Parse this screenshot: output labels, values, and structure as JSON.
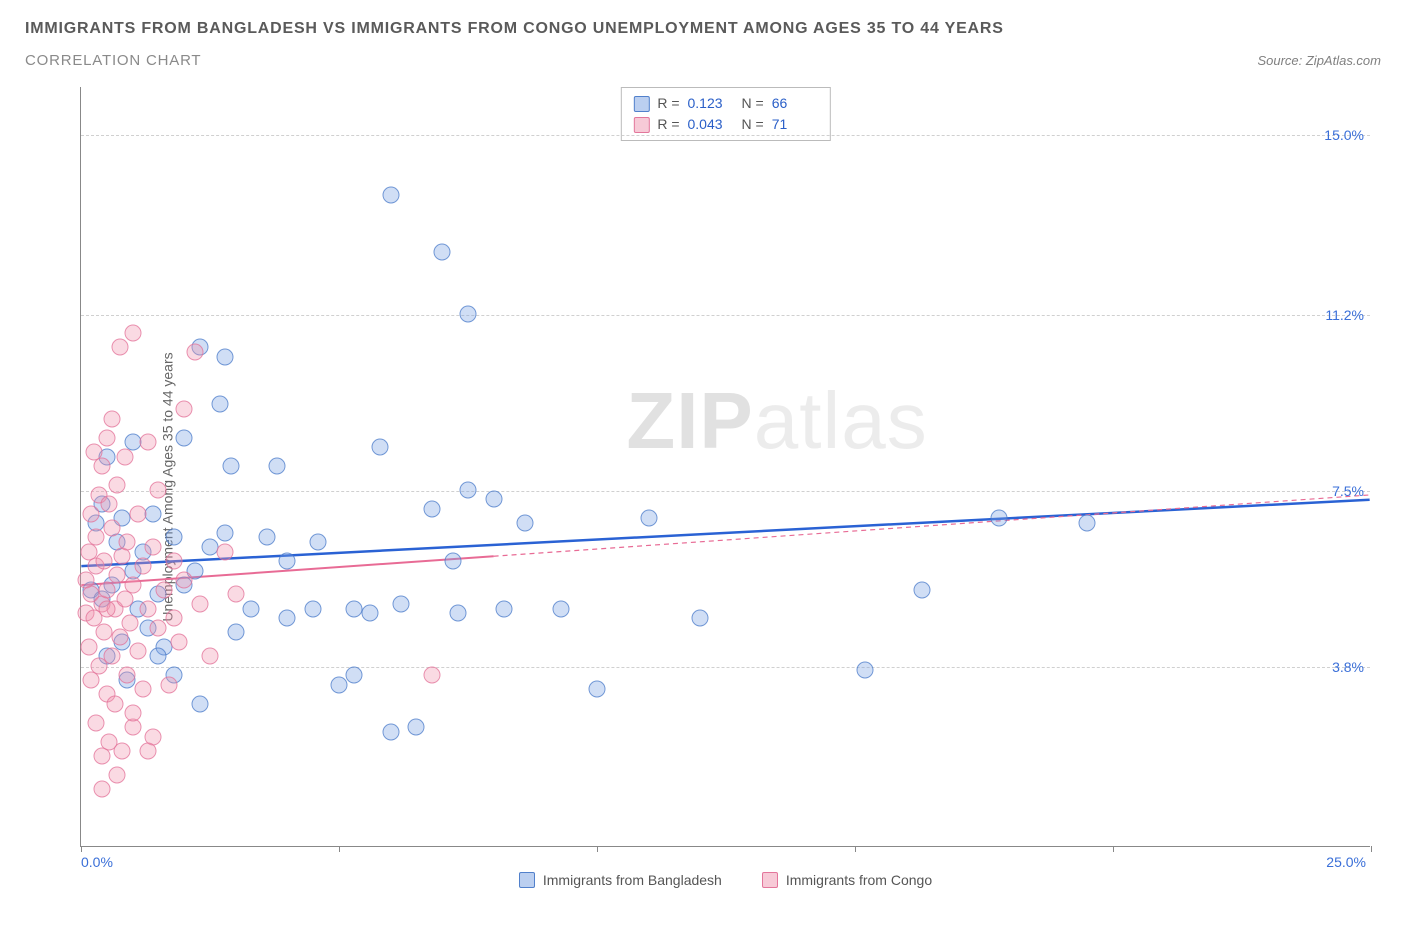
{
  "title": "IMMIGRANTS FROM BANGLADESH VS IMMIGRANTS FROM CONGO UNEMPLOYMENT AMONG AGES 35 TO 44 YEARS",
  "subtitle": "CORRELATION CHART",
  "source_label": "Source: ",
  "source_name": "ZipAtlas.com",
  "ylabel": "Unemployment Among Ages 35 to 44 years",
  "watermark_bold": "ZIP",
  "watermark_light": "atlas",
  "chart": {
    "type": "scatter",
    "xlim": [
      0,
      25
    ],
    "ylim": [
      0,
      16
    ],
    "x_ticks": [
      0,
      5,
      10,
      15,
      20,
      25
    ],
    "x_tick_labels": {
      "0": "0.0%",
      "25": "25.0%"
    },
    "y_gridlines": [
      3.8,
      7.5,
      11.2,
      15.0
    ],
    "y_tick_labels": [
      "3.8%",
      "7.5%",
      "11.2%",
      "15.0%"
    ],
    "background_color": "#ffffff",
    "grid_color": "#d0d0d0",
    "grid_style": "dashed",
    "axis_color": "#888888",
    "series": [
      {
        "name": "Immigrants from Bangladesh",
        "marker_fill": "rgba(120,160,225,0.35)",
        "marker_stroke": "rgba(70,120,200,0.7)",
        "marker_size": 17,
        "trend_color": "#2a62d4",
        "trend_width": 2.5,
        "R": "0.123",
        "N": "66",
        "trend": {
          "x1": 0,
          "y1": 5.9,
          "x2": 25,
          "y2": 7.3,
          "solid_until_x": 25
        },
        "points": [
          [
            0.2,
            5.4
          ],
          [
            0.3,
            6.8
          ],
          [
            0.4,
            5.2
          ],
          [
            0.4,
            7.2
          ],
          [
            0.5,
            4.0
          ],
          [
            0.5,
            8.2
          ],
          [
            0.6,
            5.5
          ],
          [
            0.7,
            6.4
          ],
          [
            0.8,
            4.3
          ],
          [
            0.8,
            6.9
          ],
          [
            0.9,
            3.5
          ],
          [
            1.0,
            5.8
          ],
          [
            1.0,
            8.5
          ],
          [
            1.1,
            5.0
          ],
          [
            1.2,
            6.2
          ],
          [
            1.3,
            4.6
          ],
          [
            1.4,
            7.0
          ],
          [
            1.5,
            5.3
          ],
          [
            1.6,
            4.2
          ],
          [
            1.8,
            6.5
          ],
          [
            1.8,
            3.6
          ],
          [
            2.0,
            8.6
          ],
          [
            2.0,
            5.5
          ],
          [
            2.3,
            10.5
          ],
          [
            2.3,
            3.0
          ],
          [
            2.5,
            6.3
          ],
          [
            2.7,
            9.3
          ],
          [
            2.8,
            10.3
          ],
          [
            2.8,
            6.6
          ],
          [
            2.9,
            8.0
          ],
          [
            3.0,
            4.5
          ],
          [
            3.3,
            5.0
          ],
          [
            3.6,
            6.5
          ],
          [
            3.8,
            8.0
          ],
          [
            4.0,
            4.8
          ],
          [
            4.5,
            5.0
          ],
          [
            4.6,
            6.4
          ],
          [
            5.0,
            3.4
          ],
          [
            5.3,
            5.0
          ],
          [
            5.6,
            4.9
          ],
          [
            5.8,
            8.4
          ],
          [
            6.0,
            2.4
          ],
          [
            6.0,
            13.7
          ],
          [
            6.2,
            5.1
          ],
          [
            6.5,
            2.5
          ],
          [
            6.8,
            7.1
          ],
          [
            7.0,
            12.5
          ],
          [
            7.2,
            6.0
          ],
          [
            7.3,
            4.9
          ],
          [
            7.5,
            7.5
          ],
          [
            7.5,
            11.2
          ],
          [
            8.0,
            7.3
          ],
          [
            8.2,
            5.0
          ],
          [
            8.6,
            6.8
          ],
          [
            9.3,
            5.0
          ],
          [
            10.0,
            3.3
          ],
          [
            11.0,
            6.9
          ],
          [
            12.0,
            4.8
          ],
          [
            15.2,
            3.7
          ],
          [
            16.3,
            5.4
          ],
          [
            17.8,
            6.9
          ],
          [
            19.5,
            6.8
          ],
          [
            5.3,
            3.6
          ],
          [
            4.0,
            6.0
          ],
          [
            1.5,
            4.0
          ],
          [
            2.2,
            5.8
          ]
        ]
      },
      {
        "name": "Immigrants from Congo",
        "marker_fill": "rgba(240,150,175,0.35)",
        "marker_stroke": "rgba(225,110,150,0.7)",
        "marker_size": 17,
        "trend_color": "#e86b95",
        "trend_width": 2,
        "R": "0.043",
        "N": "71",
        "trend": {
          "x1": 0,
          "y1": 5.5,
          "x2": 25,
          "y2": 7.4,
          "solid_until_x": 8
        },
        "points": [
          [
            0.1,
            4.9
          ],
          [
            0.1,
            5.6
          ],
          [
            0.15,
            6.2
          ],
          [
            0.15,
            4.2
          ],
          [
            0.2,
            7.0
          ],
          [
            0.2,
            3.5
          ],
          [
            0.2,
            5.3
          ],
          [
            0.25,
            8.3
          ],
          [
            0.25,
            4.8
          ],
          [
            0.3,
            5.9
          ],
          [
            0.3,
            2.6
          ],
          [
            0.3,
            6.5
          ],
          [
            0.35,
            3.8
          ],
          [
            0.35,
            7.4
          ],
          [
            0.4,
            5.1
          ],
          [
            0.4,
            8.0
          ],
          [
            0.4,
            1.9
          ],
          [
            0.45,
            4.5
          ],
          [
            0.45,
            6.0
          ],
          [
            0.5,
            8.6
          ],
          [
            0.5,
            3.2
          ],
          [
            0.5,
            5.4
          ],
          [
            0.55,
            7.2
          ],
          [
            0.55,
            2.2
          ],
          [
            0.6,
            4.0
          ],
          [
            0.6,
            6.7
          ],
          [
            0.6,
            9.0
          ],
          [
            0.65,
            5.0
          ],
          [
            0.65,
            3.0
          ],
          [
            0.7,
            7.6
          ],
          [
            0.7,
            5.7
          ],
          [
            0.75,
            4.4
          ],
          [
            0.75,
            10.5
          ],
          [
            0.8,
            6.1
          ],
          [
            0.8,
            2.0
          ],
          [
            0.85,
            5.2
          ],
          [
            0.85,
            8.2
          ],
          [
            0.9,
            3.6
          ],
          [
            0.9,
            6.4
          ],
          [
            0.95,
            4.7
          ],
          [
            1.0,
            10.8
          ],
          [
            1.0,
            5.5
          ],
          [
            1.0,
            2.5
          ],
          [
            1.1,
            7.0
          ],
          [
            1.1,
            4.1
          ],
          [
            1.2,
            5.9
          ],
          [
            1.2,
            3.3
          ],
          [
            1.3,
            8.5
          ],
          [
            1.3,
            5.0
          ],
          [
            1.4,
            6.3
          ],
          [
            1.4,
            2.3
          ],
          [
            1.5,
            4.6
          ],
          [
            1.5,
            7.5
          ],
          [
            1.6,
            5.4
          ],
          [
            1.7,
            3.4
          ],
          [
            1.8,
            6.0
          ],
          [
            1.9,
            4.3
          ],
          [
            2.0,
            5.6
          ],
          [
            2.0,
            9.2
          ],
          [
            2.2,
            10.4
          ],
          [
            2.3,
            5.1
          ],
          [
            2.5,
            4.0
          ],
          [
            2.8,
            6.2
          ],
          [
            3.0,
            5.3
          ],
          [
            0.4,
            1.2
          ],
          [
            0.7,
            1.5
          ],
          [
            1.0,
            2.8
          ],
          [
            1.3,
            2.0
          ],
          [
            1.8,
            4.8
          ],
          [
            6.8,
            3.6
          ],
          [
            0.5,
            5.0
          ]
        ]
      }
    ]
  },
  "stats_labels": {
    "R": "R =",
    "N": "N ="
  },
  "legend_labels": [
    "Immigrants from Bangladesh",
    "Immigrants from Congo"
  ]
}
